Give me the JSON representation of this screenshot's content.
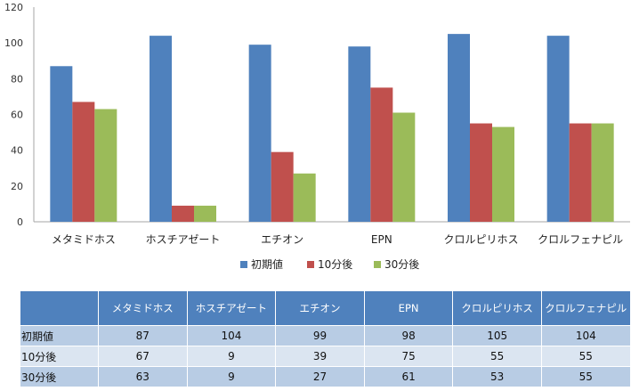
{
  "chart_data": {
    "type": "bar",
    "categories": [
      "メタミドホス",
      "ホスチアゼート",
      "エチオン",
      "EPN",
      "クロルピリホス",
      "クロルフェナピル"
    ],
    "series": [
      {
        "name": "初期値",
        "color": "#4f81bd",
        "values": [
          87,
          104,
          99,
          98,
          105,
          104
        ]
      },
      {
        "name": "10分後",
        "color": "#c0504d",
        "values": [
          67,
          9,
          39,
          75,
          55,
          55
        ]
      },
      {
        "name": "30分後",
        "color": "#9bbb59",
        "values": [
          63,
          9,
          27,
          61,
          53,
          55
        ]
      }
    ],
    "ylim": [
      0,
      120
    ],
    "yticks": [
      0,
      20,
      40,
      60,
      80,
      100,
      120
    ],
    "grid": false,
    "legend_position": "bottom-center"
  },
  "table": {
    "corner": "",
    "columns": [
      "メタミドホス",
      "ホスチアゼート",
      "エチオン",
      "EPN",
      "クロルピリホス",
      "クロルフェナピル"
    ],
    "rows": [
      {
        "label": "初期値",
        "values": [
          "87",
          "104",
          "99",
          "98",
          "105",
          "104"
        ]
      },
      {
        "label": "10分後",
        "values": [
          "67",
          "9",
          "39",
          "75",
          "55",
          "55"
        ]
      },
      {
        "label": "30分後",
        "values": [
          "63",
          "9",
          "27",
          "61",
          "53",
          "55"
        ]
      }
    ]
  }
}
